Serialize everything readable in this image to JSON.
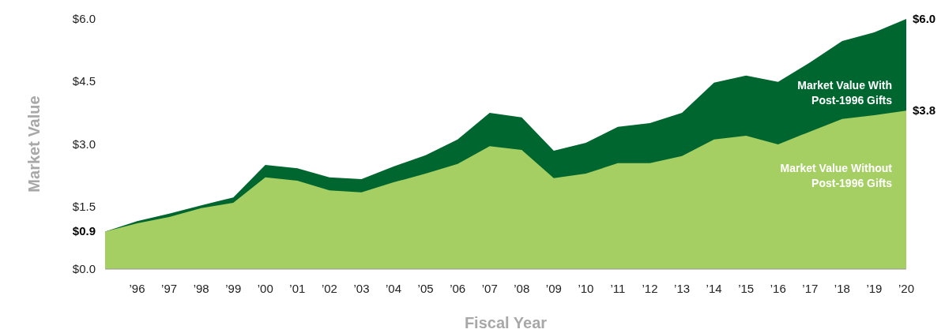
{
  "chart_data": {
    "type": "area",
    "xlabel": "Fiscal Year",
    "ylabel": "Market Value",
    "categories": [
      null,
      "’96",
      "’97",
      "’98",
      "’99",
      "’00",
      "’01",
      "’02",
      "’03",
      "’04",
      "’05",
      "’06",
      "’07",
      "’08",
      "’09",
      "’10",
      "’11",
      "’12",
      "’13",
      "’14",
      "’15",
      "’16",
      "’17",
      "’18",
      "’19",
      "’20"
    ],
    "series": [
      {
        "name": "Market Value With Post-1996 Gifts",
        "color": "#00662f",
        "values": [
          0.9,
          1.15,
          1.33,
          1.53,
          1.72,
          2.5,
          2.42,
          2.2,
          2.16,
          2.46,
          2.73,
          3.11,
          3.75,
          3.64,
          2.84,
          3.03,
          3.41,
          3.5,
          3.75,
          4.47,
          4.64,
          4.49,
          4.96,
          5.47,
          5.68,
          6.0
        ]
      },
      {
        "name": "Market Value Without Post-1996 Gifts",
        "color": "#a6cf63",
        "values": [
          0.9,
          1.1,
          1.25,
          1.46,
          1.59,
          2.2,
          2.12,
          1.89,
          1.84,
          2.08,
          2.29,
          2.52,
          2.95,
          2.86,
          2.18,
          2.29,
          2.54,
          2.54,
          2.71,
          3.11,
          3.2,
          2.99,
          3.3,
          3.6,
          3.69,
          3.8
        ]
      }
    ],
    "ylim": [
      0,
      6
    ],
    "yticks": [
      {
        "value": 0,
        "label": "$0.0"
      },
      {
        "value": 1.5,
        "label": "$1.5"
      },
      {
        "value": 3,
        "label": "$3.0"
      },
      {
        "value": 4.5,
        "label": "$4.5"
      },
      {
        "value": 6,
        "label": "$6.0"
      }
    ],
    "annotations": [
      "$0.9",
      {
        "text": "$6.0",
        "x": "’20",
        "y": 6.0
      },
      {
        "text": "$3.8",
        "x": "’20",
        "y": 3.8
      }
    ],
    "grid": false,
    "legend": false
  }
}
